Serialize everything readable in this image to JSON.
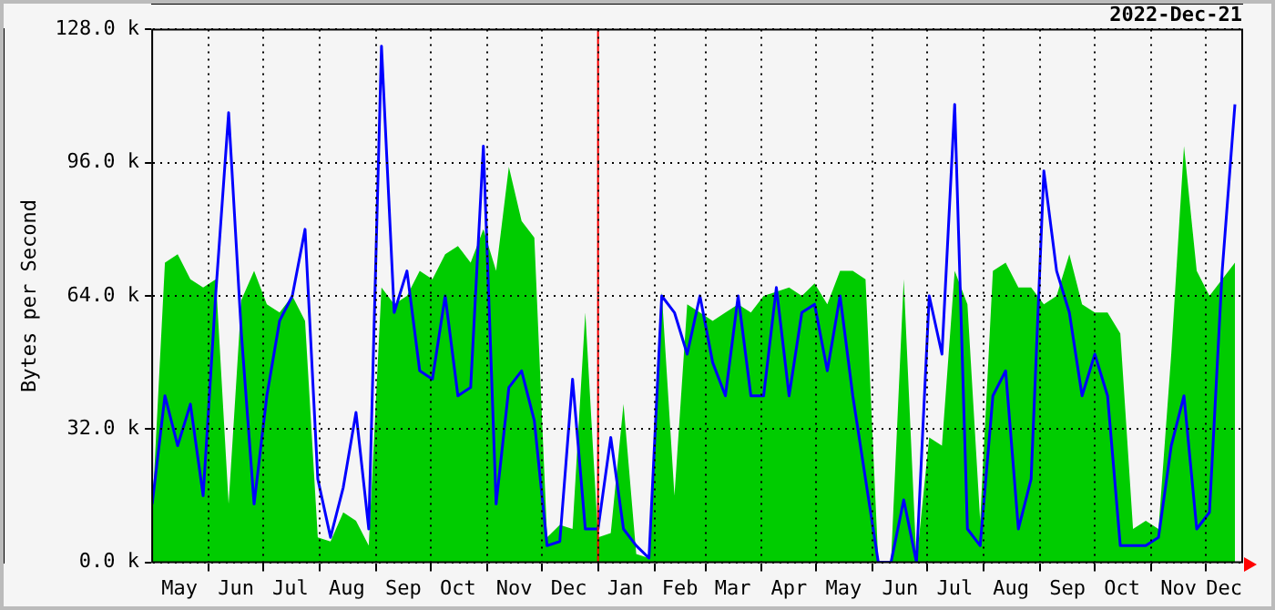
{
  "chart_data": {
    "type": "area",
    "title": "2022-Dec-21",
    "ylabel": "Bytes per Second",
    "x": [
      "2021-05-01",
      "2021-05-08",
      "2021-05-15",
      "2021-05-22",
      "2021-05-29",
      "2021-06-05",
      "2021-06-12",
      "2021-06-19",
      "2021-06-26",
      "2021-07-03",
      "2021-07-10",
      "2021-07-17",
      "2021-07-24",
      "2021-07-31",
      "2021-08-07",
      "2021-08-14",
      "2021-08-21",
      "2021-08-28",
      "2021-09-04",
      "2021-09-11",
      "2021-09-18",
      "2021-09-25",
      "2021-10-02",
      "2021-10-09",
      "2021-10-16",
      "2021-10-23",
      "2021-10-30",
      "2021-11-06",
      "2021-11-13",
      "2021-11-20",
      "2021-11-27",
      "2021-12-04",
      "2021-12-11",
      "2021-12-18",
      "2021-12-25",
      "2022-01-01",
      "2022-01-08",
      "2022-01-15",
      "2022-01-22",
      "2022-01-29",
      "2022-02-05",
      "2022-02-12",
      "2022-02-19",
      "2022-02-26",
      "2022-03-05",
      "2022-03-12",
      "2022-03-19",
      "2022-03-26",
      "2022-04-02",
      "2022-04-09",
      "2022-04-16",
      "2022-04-23",
      "2022-04-30",
      "2022-05-07",
      "2022-05-14",
      "2022-05-21",
      "2022-05-28",
      "2022-06-04",
      "2022-06-11",
      "2022-06-18",
      "2022-06-25",
      "2022-07-02",
      "2022-07-09",
      "2022-07-16",
      "2022-07-23",
      "2022-07-30",
      "2022-08-06",
      "2022-08-13",
      "2022-08-20",
      "2022-08-27",
      "2022-09-03",
      "2022-09-10",
      "2022-09-17",
      "2022-09-24",
      "2022-10-01",
      "2022-10-08",
      "2022-10-15",
      "2022-10-22",
      "2022-10-29",
      "2022-11-05",
      "2022-11-12",
      "2022-11-19",
      "2022-11-26",
      "2022-12-03",
      "2022-12-10",
      "2022-12-17"
    ],
    "series": [
      {
        "color": "#00cc00",
        "values": [
          12,
          72,
          74,
          68,
          66,
          68,
          14,
          63,
          70,
          62,
          60,
          64,
          58,
          6,
          5,
          12,
          10,
          4,
          66,
          62,
          64,
          70,
          68,
          74,
          76,
          72,
          80,
          70,
          95,
          82,
          78,
          6,
          9,
          8,
          60,
          6,
          7,
          38,
          2,
          1,
          65,
          16,
          62,
          60,
          58,
          60,
          62,
          60,
          64,
          65,
          66,
          64,
          67,
          62,
          70,
          70,
          68,
          0,
          0,
          68,
          0,
          30,
          28,
          70,
          62,
          10,
          70,
          72,
          66,
          66,
          62,
          64,
          74,
          62,
          60,
          60,
          55,
          8,
          10,
          8,
          50,
          100,
          70,
          64,
          68,
          72
        ]
      },
      {
        "type": "line",
        "color": "#0000ff",
        "values": [
          14,
          40,
          28,
          38,
          16,
          65,
          108,
          55,
          14,
          40,
          58,
          64,
          80,
          20,
          6,
          18,
          36,
          8,
          124,
          60,
          70,
          46,
          44,
          64,
          40,
          42,
          100,
          14,
          42,
          46,
          34,
          4,
          5,
          44,
          8,
          8,
          30,
          8,
          4,
          1,
          64,
          60,
          50,
          64,
          48,
          40,
          64,
          40,
          40,
          66,
          40,
          60,
          62,
          46,
          64,
          40,
          20,
          0,
          0,
          15,
          0,
          64,
          50,
          110,
          8,
          4,
          40,
          46,
          8,
          20,
          94,
          70,
          60,
          40,
          50,
          40,
          4,
          4,
          4,
          6,
          28,
          40,
          8,
          12,
          70,
          110
        ]
      }
    ],
    "xlim": [
      "2021-05-01",
      "2022-12-21"
    ],
    "xticks": [
      {
        "value": "2021-05-16",
        "label": "May"
      },
      {
        "value": "2021-06-01",
        "label": null
      },
      {
        "value": "2021-06-16",
        "label": "Jun"
      },
      {
        "value": "2021-07-01",
        "label": null
      },
      {
        "value": "2021-07-16",
        "label": "Jul"
      },
      {
        "value": "2021-08-01",
        "label": null
      },
      {
        "value": "2021-08-16",
        "label": "Aug"
      },
      {
        "value": "2021-09-01",
        "label": null
      },
      {
        "value": "2021-09-16",
        "label": "Sep"
      },
      {
        "value": "2021-10-01",
        "label": null
      },
      {
        "value": "2021-10-16",
        "label": "Oct"
      },
      {
        "value": "2021-11-01",
        "label": null
      },
      {
        "value": "2021-11-16",
        "label": "Nov"
      },
      {
        "value": "2021-12-01",
        "label": null
      },
      {
        "value": "2021-12-16",
        "label": "Dec"
      },
      {
        "value": "2022-01-01",
        "label": null
      },
      {
        "value": "2022-01-16",
        "label": "Jan"
      },
      {
        "value": "2022-02-01",
        "label": null
      },
      {
        "value": "2022-02-15",
        "label": "Feb"
      },
      {
        "value": "2022-03-01",
        "label": null
      },
      {
        "value": "2022-03-16",
        "label": "Mar"
      },
      {
        "value": "2022-04-01",
        "label": null
      },
      {
        "value": "2022-04-16",
        "label": "Apr"
      },
      {
        "value": "2022-05-01",
        "label": null
      },
      {
        "value": "2022-05-16",
        "label": "May"
      },
      {
        "value": "2022-06-01",
        "label": null
      },
      {
        "value": "2022-06-16",
        "label": "Jun"
      },
      {
        "value": "2022-07-01",
        "label": null
      },
      {
        "value": "2022-07-16",
        "label": "Jul"
      },
      {
        "value": "2022-08-01",
        "label": null
      },
      {
        "value": "2022-08-16",
        "label": "Aug"
      },
      {
        "value": "2022-09-01",
        "label": null
      },
      {
        "value": "2022-09-16",
        "label": "Sep"
      },
      {
        "value": "2022-10-01",
        "label": null
      },
      {
        "value": "2022-10-16",
        "label": "Oct"
      },
      {
        "value": "2022-11-01",
        "label": null
      },
      {
        "value": "2022-11-16",
        "label": "Nov"
      },
      {
        "value": "2022-12-01",
        "label": null
      },
      {
        "value": "2022-12-11",
        "label": "Dec"
      }
    ],
    "ylim": [
      0,
      128
    ],
    "yticks": [
      {
        "value": 0,
        "label": "0.0 k"
      },
      {
        "value": 32,
        "label": "32.0 k"
      },
      {
        "value": 64,
        "label": "64.0 k"
      },
      {
        "value": 96,
        "label": "96.0 k"
      },
      {
        "value": 128,
        "label": "128.0 k"
      }
    ],
    "ref_lines": [
      {
        "axis": "x",
        "value": "2022-01-01",
        "color": "#ff0000"
      }
    ],
    "grid": true,
    "legend": false,
    "marker": "none",
    "line_style": "solid"
  }
}
